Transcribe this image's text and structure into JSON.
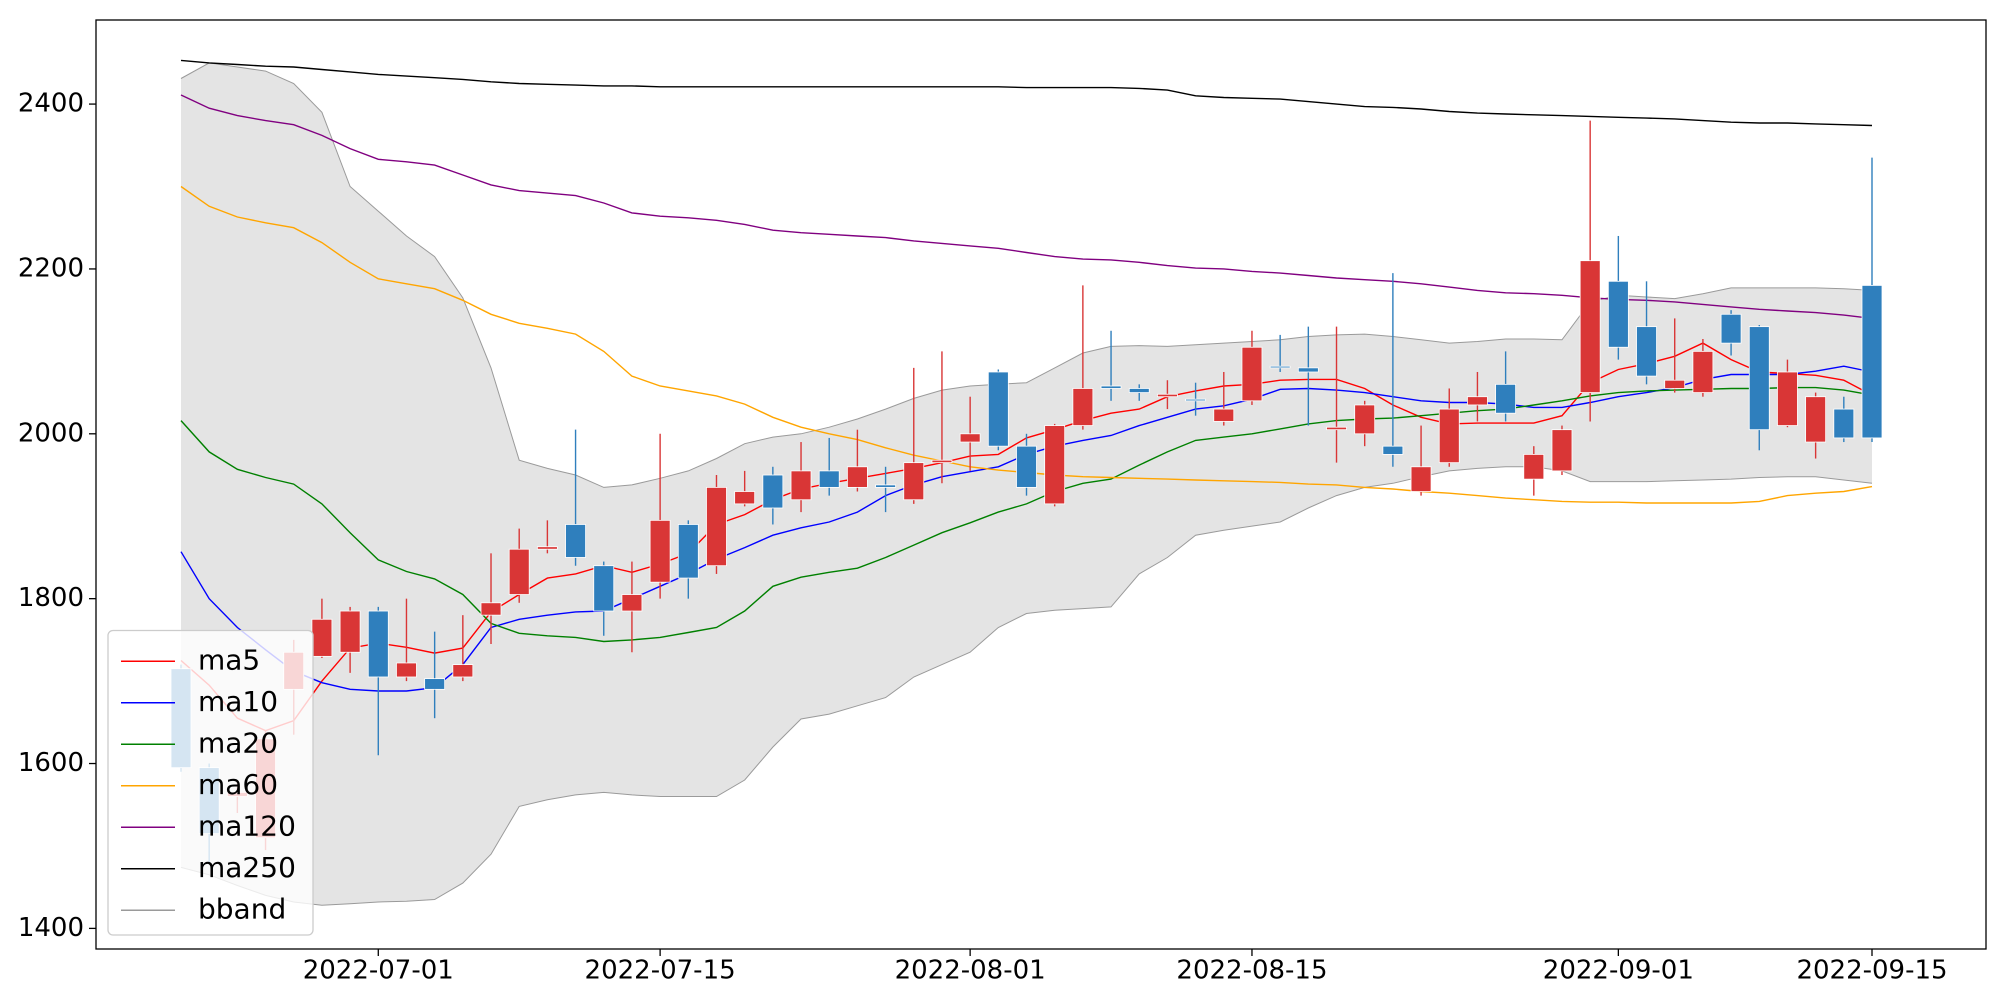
{
  "chart_data": {
    "type": "candlestick",
    "x": [
      "2022-06-22",
      "2022-06-23",
      "2022-06-24",
      "2022-06-27",
      "2022-06-28",
      "2022-06-29",
      "2022-06-30",
      "2022-07-01",
      "2022-07-04",
      "2022-07-05",
      "2022-07-06",
      "2022-07-07",
      "2022-07-08",
      "2022-07-11",
      "2022-07-12",
      "2022-07-13",
      "2022-07-14",
      "2022-07-15",
      "2022-07-18",
      "2022-07-19",
      "2022-07-20",
      "2022-07-21",
      "2022-07-22",
      "2022-07-25",
      "2022-07-26",
      "2022-07-27",
      "2022-07-28",
      "2022-07-29",
      "2022-08-01",
      "2022-08-02",
      "2022-08-03",
      "2022-08-04",
      "2022-08-05",
      "2022-08-08",
      "2022-08-09",
      "2022-08-10",
      "2022-08-11",
      "2022-08-12",
      "2022-08-15",
      "2022-08-16",
      "2022-08-17",
      "2022-08-18",
      "2022-08-19",
      "2022-08-22",
      "2022-08-23",
      "2022-08-24",
      "2022-08-25",
      "2022-08-26",
      "2022-08-29",
      "2022-08-30",
      "2022-08-31",
      "2022-09-01",
      "2022-09-02",
      "2022-09-05",
      "2022-09-06",
      "2022-09-07",
      "2022-09-08",
      "2022-09-09",
      "2022-09-13",
      "2022-09-14",
      "2022-09-15"
    ],
    "ohlc": {
      "open": [
        1715,
        1595,
        1560,
        1510,
        1690,
        1730,
        1735,
        1785,
        1705,
        1703,
        1705,
        1780,
        1805,
        1860,
        1890,
        1840,
        1785,
        1820,
        1890,
        1840,
        1915,
        1950,
        1920,
        1955,
        1935,
        1938,
        1920,
        1965,
        1990,
        2075,
        1985,
        1915,
        2010,
        2058,
        2055,
        2045,
        2042,
        2015,
        2040,
        2082,
        2080,
        2005,
        2000,
        1985,
        1930,
        1965,
        2035,
        2060,
        1945,
        1955,
        2050,
        2185,
        2130,
        2055,
        2050,
        2145,
        2130,
        2010,
        1990,
        2030,
        2180
      ],
      "high": [
        1720,
        1600,
        1580,
        1640,
        1750,
        1800,
        1790,
        1790,
        1800,
        1760,
        1780,
        1855,
        1885,
        1895,
        2005,
        1845,
        1845,
        2000,
        1895,
        1950,
        1955,
        1960,
        1990,
        1995,
        2005,
        1960,
        2080,
        2100,
        2045,
        2078,
        2000,
        2012,
        2180,
        2125,
        2060,
        2065,
        2062,
        2075,
        2125,
        2120,
        2130,
        2130,
        2040,
        2195,
        2010,
        2055,
        2075,
        2100,
        1985,
        2010,
        2380,
        2240,
        2185,
        2140,
        2115,
        2150,
        2132,
        2090,
        2050,
        2045,
        2335
      ],
      "low": [
        1590,
        1480,
        1540,
        1495,
        1635,
        1728,
        1710,
        1610,
        1700,
        1655,
        1700,
        1745,
        1795,
        1855,
        1840,
        1755,
        1735,
        1800,
        1800,
        1830,
        1912,
        1890,
        1905,
        1925,
        1930,
        1905,
        1915,
        1940,
        1955,
        1980,
        1925,
        1912,
        2005,
        2040,
        2040,
        2030,
        2022,
        2010,
        2035,
        2075,
        2010,
        1965,
        1985,
        1960,
        1925,
        1960,
        2015,
        2015,
        1925,
        1950,
        2015,
        2090,
        2060,
        2050,
        2045,
        2095,
        1980,
        2008,
        1970,
        1990,
        1990
      ],
      "close": [
        1595,
        1515,
        1565,
        1630,
        1735,
        1775,
        1785,
        1705,
        1722,
        1690,
        1720,
        1795,
        1860,
        1863,
        1850,
        1785,
        1805,
        1895,
        1825,
        1935,
        1930,
        1910,
        1955,
        1935,
        1960,
        1935,
        1965,
        1968,
        2000,
        1985,
        1935,
        2010,
        2055,
        2055,
        2050,
        2048,
        2040,
        2030,
        2105,
        2080,
        2075,
        2008,
        2035,
        1975,
        1960,
        2030,
        2045,
        2025,
        1975,
        2005,
        2210,
        2105,
        2070,
        2065,
        2100,
        2110,
        2005,
        2075,
        2045,
        1995,
        1995
      ]
    },
    "up_color": "#d93636",
    "down_color": "#2f7fbd",
    "series": [
      {
        "name": "ma5",
        "color": "#ff0000",
        "values": [
          1725,
          1695,
          1655,
          1640,
          1652,
          1700,
          1740,
          1746,
          1741,
          1734,
          1740,
          1784,
          1805,
          1825,
          1830,
          1840,
          1832,
          1842,
          1855,
          1890,
          1902,
          1920,
          1933,
          1940,
          1946,
          1952,
          1958,
          1965,
          1973,
          1975,
          1995,
          2005,
          2016,
          2025,
          2030,
          2045,
          2052,
          2058,
          2060,
          2065,
          2066,
          2066,
          2055,
          2035,
          2020,
          2012,
          2013,
          2013,
          2013,
          2022,
          2062,
          2078,
          2085,
          2094,
          2110,
          2090,
          2075,
          2073,
          2071,
          2065,
          2047
        ]
      },
      {
        "name": "ma10",
        "color": "#0000ff",
        "values": [
          1857,
          1800,
          1765,
          1738,
          1712,
          1698,
          1690,
          1688,
          1688,
          1692,
          1720,
          1765,
          1775,
          1780,
          1784,
          1785,
          1800,
          1815,
          1830,
          1848,
          1862,
          1877,
          1886,
          1893,
          1905,
          1925,
          1938,
          1948,
          1954,
          1960,
          1975,
          1985,
          1992,
          1998,
          2010,
          2020,
          2030,
          2034,
          2042,
          2054,
          2055,
          2053,
          2050,
          2045,
          2040,
          2038,
          2038,
          2036,
          2032,
          2032,
          2038,
          2045,
          2050,
          2056,
          2066,
          2072,
          2072,
          2072,
          2076,
          2082,
          2075
        ]
      },
      {
        "name": "ma20",
        "color": "#008000",
        "values": [
          2016,
          1978,
          1957,
          1947,
          1939,
          1915,
          1880,
          1847,
          1833,
          1824,
          1805,
          1770,
          1758,
          1755,
          1753,
          1748,
          1750,
          1753,
          1759,
          1765,
          1785,
          1815,
          1826,
          1832,
          1837,
          1850,
          1865,
          1880,
          1892,
          1905,
          1915,
          1930,
          1940,
          1945,
          1962,
          1978,
          1992,
          1996,
          2000,
          2006,
          2012,
          2016,
          2018,
          2019,
          2022,
          2025,
          2028,
          2030,
          2035,
          2040,
          2046,
          2050,
          2052,
          2053,
          2054,
          2055,
          2055,
          2056,
          2056,
          2053,
          2047
        ]
      },
      {
        "name": "ma60",
        "color": "#ffa500",
        "values": [
          2300,
          2276,
          2263,
          2256,
          2250,
          2232,
          2208,
          2188,
          2182,
          2176,
          2162,
          2145,
          2134,
          2128,
          2121,
          2100,
          2070,
          2058,
          2052,
          2046,
          2036,
          2020,
          2008,
          2000,
          1993,
          1983,
          1974,
          1967,
          1960,
          1956,
          1953,
          1950,
          1948,
          1947,
          1946,
          1945,
          1944,
          1943,
          1942,
          1941,
          1939,
          1938,
          1935,
          1933,
          1930,
          1928,
          1925,
          1922,
          1920,
          1918,
          1917,
          1917,
          1916,
          1916,
          1916,
          1916,
          1918,
          1925,
          1928,
          1930,
          1936
        ]
      },
      {
        "name": "ma120",
        "color": "#800080",
        "values": [
          2411,
          2395,
          2386,
          2380,
          2375,
          2362,
          2346,
          2333,
          2330,
          2326,
          2314,
          2302,
          2295,
          2292,
          2289,
          2280,
          2268,
          2264,
          2262,
          2259,
          2254,
          2247,
          2244,
          2242,
          2240,
          2238,
          2234,
          2231,
          2228,
          2225,
          2220,
          2215,
          2212,
          2211,
          2208,
          2204,
          2201,
          2200,
          2197,
          2195,
          2192,
          2189,
          2187,
          2185,
          2182,
          2178,
          2174,
          2171,
          2170,
          2168,
          2165,
          2163,
          2162,
          2160,
          2157,
          2154,
          2151,
          2149,
          2147,
          2144,
          2140
        ]
      },
      {
        "name": "ma250",
        "color": "#000000",
        "values": [
          2453,
          2450,
          2448,
          2446,
          2445,
          2442,
          2439,
          2436,
          2434,
          2432,
          2430,
          2427,
          2425,
          2424,
          2423,
          2422,
          2422,
          2421,
          2421,
          2421,
          2421,
          2421,
          2421,
          2421,
          2421,
          2421,
          2421,
          2421,
          2421,
          2421,
          2420,
          2420,
          2420,
          2420,
          2419,
          2417,
          2410,
          2408,
          2407,
          2406,
          2403,
          2400,
          2397,
          2396,
          2394,
          2391,
          2389,
          2388,
          2387,
          2386,
          2385,
          2384,
          2383,
          2382,
          2380,
          2378,
          2377,
          2377,
          2376,
          2375,
          2374
        ]
      }
    ],
    "bband": {
      "name": "bband",
      "color": "#9a9a9a",
      "fill": "#e4e4e4",
      "upper": [
        2431,
        2450,
        2445,
        2440,
        2425,
        2390,
        2300,
        2270,
        2240,
        2215,
        2165,
        2080,
        1968,
        1958,
        1950,
        1935,
        1938,
        1946,
        1955,
        1970,
        1988,
        1996,
        2000,
        2008,
        2018,
        2030,
        2043,
        2053,
        2058,
        2060,
        2062,
        2080,
        2098,
        2106,
        2107,
        2106,
        2108,
        2110,
        2112,
        2114,
        2118,
        2120,
        2121,
        2118,
        2114,
        2110,
        2112,
        2115,
        2115,
        2114,
        2160,
        2168,
        2166,
        2164,
        2170,
        2177,
        2177,
        2177,
        2177,
        2176,
        2174
      ],
      "lower": [
        1474,
        1465,
        1452,
        1440,
        1432,
        1428,
        1430,
        1432,
        1433,
        1435,
        1455,
        1490,
        1548,
        1556,
        1562,
        1565,
        1562,
        1560,
        1560,
        1560,
        1580,
        1620,
        1654,
        1660,
        1670,
        1680,
        1705,
        1720,
        1735,
        1765,
        1782,
        1786,
        1788,
        1790,
        1830,
        1850,
        1877,
        1883,
        1888,
        1893,
        1910,
        1925,
        1935,
        1940,
        1948,
        1955,
        1958,
        1960,
        1960,
        1955,
        1942,
        1942,
        1942,
        1943,
        1944,
        1945,
        1947,
        1948,
        1948,
        1944,
        1940
      ]
    },
    "xticks": [
      "2022-07-01",
      "2022-07-15",
      "2022-08-01",
      "2022-08-15",
      "2022-09-01",
      "2022-09-15"
    ],
    "ylim": [
      1375,
      2502
    ],
    "yticks": [
      1400,
      1600,
      1800,
      2000,
      2200,
      2400
    ],
    "legend": "lower left"
  }
}
